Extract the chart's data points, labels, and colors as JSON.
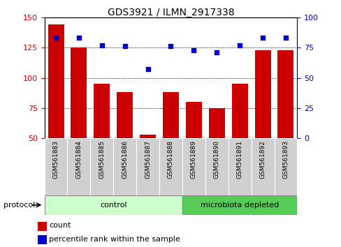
{
  "title": "GDS3921 / ILMN_2917338",
  "samples": [
    "GSM561883",
    "GSM561884",
    "GSM561885",
    "GSM561886",
    "GSM561887",
    "GSM561888",
    "GSM561889",
    "GSM561890",
    "GSM561891",
    "GSM561892",
    "GSM561893"
  ],
  "counts": [
    144,
    125,
    95,
    88,
    53,
    88,
    80,
    75,
    95,
    123,
    123
  ],
  "percentile_ranks": [
    83,
    83,
    77,
    76,
    57,
    76,
    73,
    71,
    77,
    83,
    83
  ],
  "bar_color": "#cc0000",
  "dot_color": "#0000cc",
  "ylim_left": [
    50,
    150
  ],
  "ylim_right": [
    0,
    100
  ],
  "yticks_left": [
    50,
    75,
    100,
    125,
    150
  ],
  "yticks_right": [
    0,
    25,
    50,
    75,
    100
  ],
  "groups": [
    {
      "label": "control",
      "start": 0,
      "end": 5,
      "color": "#ccffcc"
    },
    {
      "label": "microbiota depleted",
      "start": 6,
      "end": 10,
      "color": "#55cc55"
    }
  ],
  "protocol_label": "protocol",
  "legend_count_label": "count",
  "legend_percentile_label": "percentile rank within the sample",
  "grid_linestyle": "dotted",
  "bar_color_left_ticks": "#cc0000",
  "bar_color_right_ticks": "#0000cc",
  "bar_width": 0.7,
  "sample_box_color": "#d0d0d0",
  "title_fontsize": 10,
  "axis_fontsize": 8,
  "label_fontsize": 6.5,
  "legend_fontsize": 8
}
